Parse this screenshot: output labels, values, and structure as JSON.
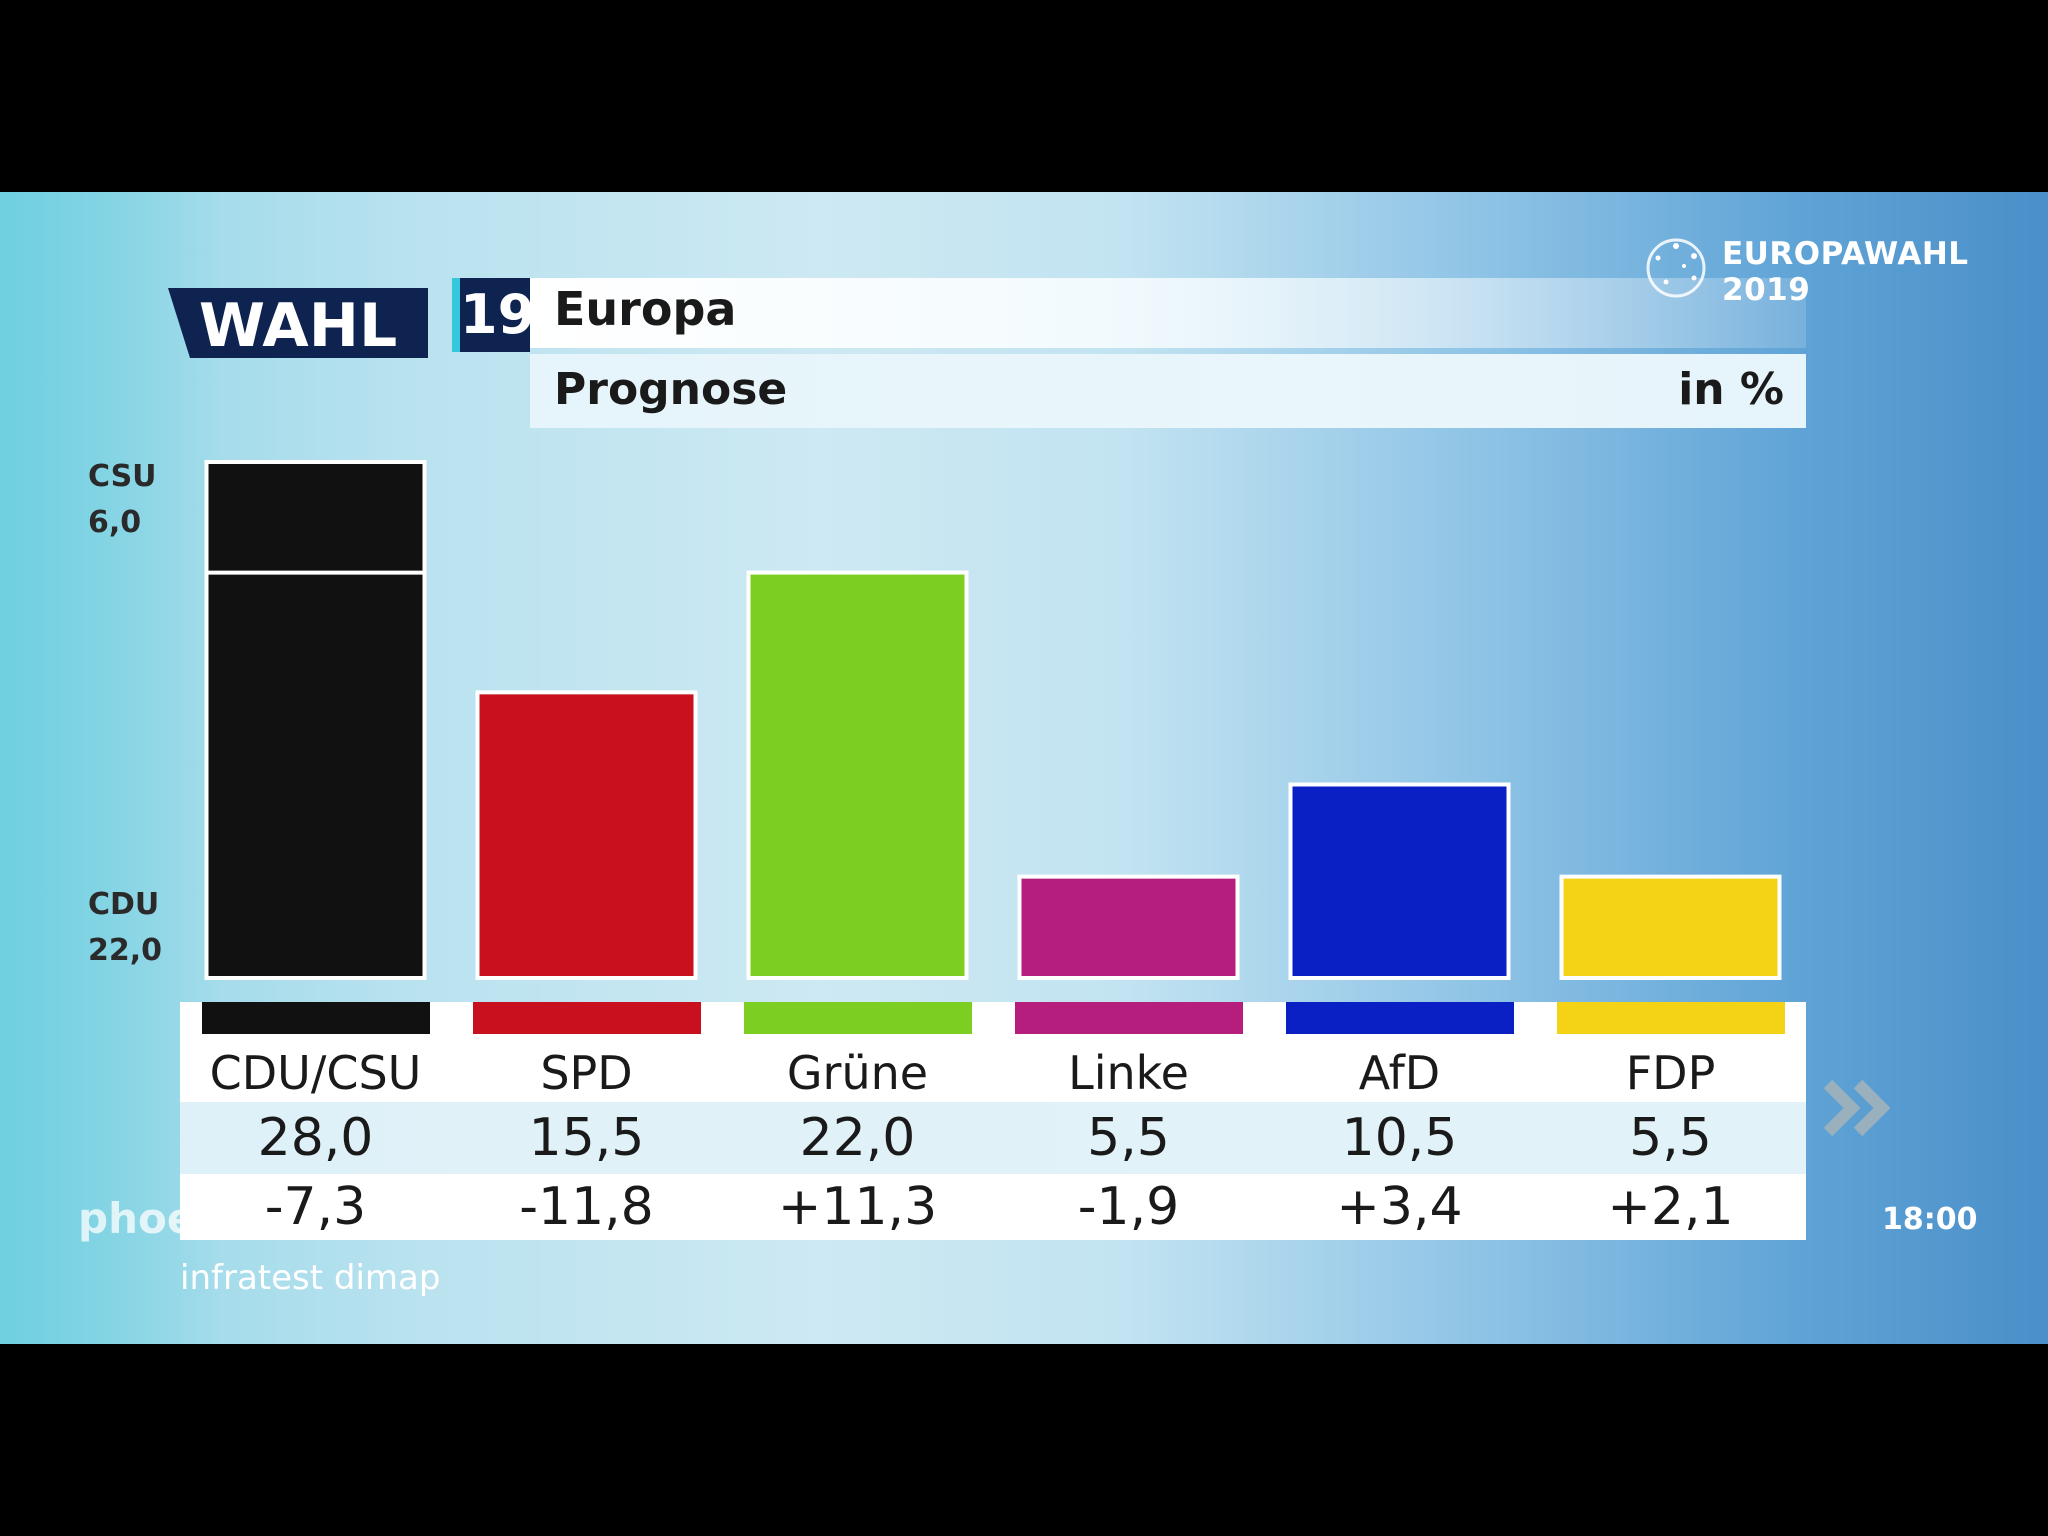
{
  "header": {
    "logo_word": "WAHL",
    "logo_number": "19",
    "title": "Europa",
    "subtitle": "Prognose",
    "unit": "in %"
  },
  "corner_logo": {
    "line1": "EUROPAWAHL",
    "line2": "2019",
    "icon": "eu-stars-circle-icon"
  },
  "side_labels": {
    "csu_name": "CSU",
    "csu_value": "6,0",
    "cdu_name": "CDU",
    "cdu_value": "22,0"
  },
  "chart_data": {
    "type": "bar",
    "title": "Europa",
    "subtitle": "Prognose",
    "unit": "in %",
    "categories": [
      "CDU/CSU",
      "SPD",
      "Grüne",
      "Linke",
      "AfD",
      "FDP"
    ],
    "values": [
      28.0,
      15.5,
      22.0,
      5.5,
      10.5,
      5.5
    ],
    "values_label": [
      "28,0",
      "15,5",
      "22,0",
      "5,5",
      "10,5",
      "5,5"
    ],
    "changes_label": [
      "-7,3",
      "-11,8",
      "+11,3",
      "-1,9",
      "+3,4",
      "+2,1"
    ],
    "changes": [
      -7.3,
      -11.8,
      11.3,
      -1.9,
      3.4,
      2.1
    ],
    "stack_first_bar": {
      "bottom_name": "CDU",
      "bottom_value": 22.0,
      "top_name": "CSU",
      "top_value": 6.0
    },
    "colors": [
      "#111111",
      "#c8101e",
      "#7ccf22",
      "#b51e7d",
      "#0a1fc4",
      "#f4d216"
    ],
    "ylim": [
      0,
      28
    ]
  },
  "source": "infratest dimap",
  "channel": "phoe",
  "time": "18:00"
}
